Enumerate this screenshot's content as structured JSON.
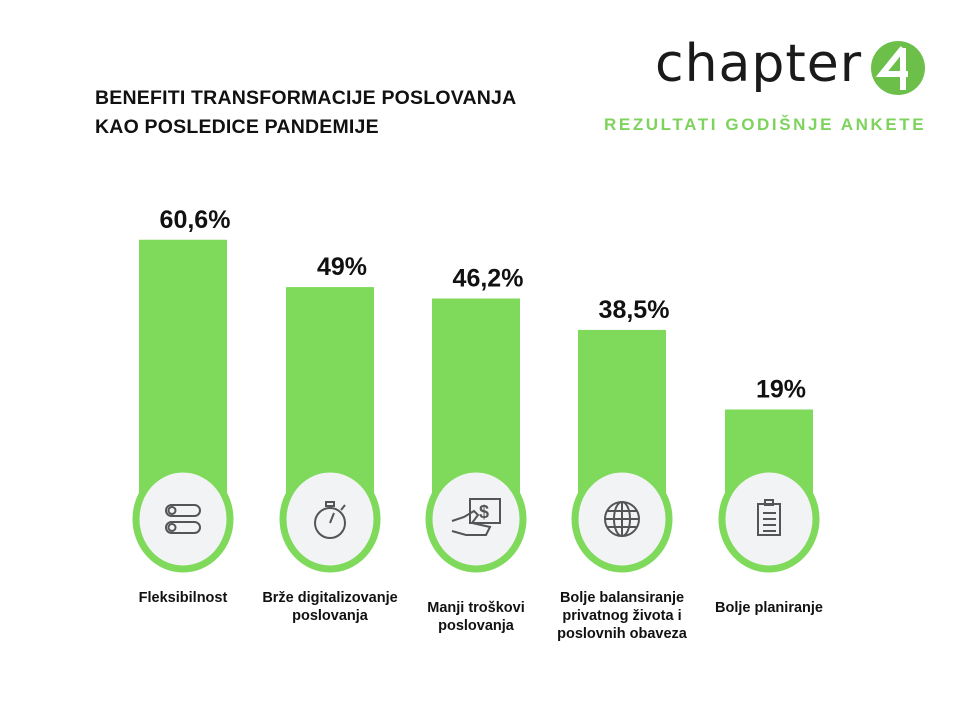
{
  "header": {
    "title_line1": "BENEFITI TRANSFORMACIJE POSLOVANJA",
    "title_line2": "KAO POSLEDICE PANDEMIJE",
    "logo_text": "chapter",
    "logo_number": "4",
    "subtitle": "REZULTATI GODIŠNJE ANKETE"
  },
  "colors": {
    "bar": "#7fd95b",
    "circle_fill": "#f2f3f5",
    "icon": "#555555",
    "subtitle": "#7dd35c"
  },
  "chart_data": {
    "type": "bar",
    "title": "BENEFITI TRANSFORMACIJE POSLOVANJA KAO POSLEDICE PANDEMIJE",
    "categories": [
      "Fleksibilnost",
      "Brže digitalizovanje poslovanja",
      "Manji troškovi poslovanja",
      "Bolje balansiranje privatnog života i poslovnih obaveza",
      "Bolje planiranje"
    ],
    "values": [
      60.6,
      49,
      46.2,
      38.5,
      19
    ],
    "value_labels": [
      "60,6%",
      "49%",
      "46,2%",
      "38,5%",
      "19%"
    ],
    "icons": [
      "toggle-icon",
      "stopwatch-icon",
      "payment-hand-icon",
      "globe-icon",
      "clipboard-icon"
    ],
    "ylim": [
      0,
      65
    ],
    "xlabel": "",
    "ylabel": "",
    "grid": false
  }
}
